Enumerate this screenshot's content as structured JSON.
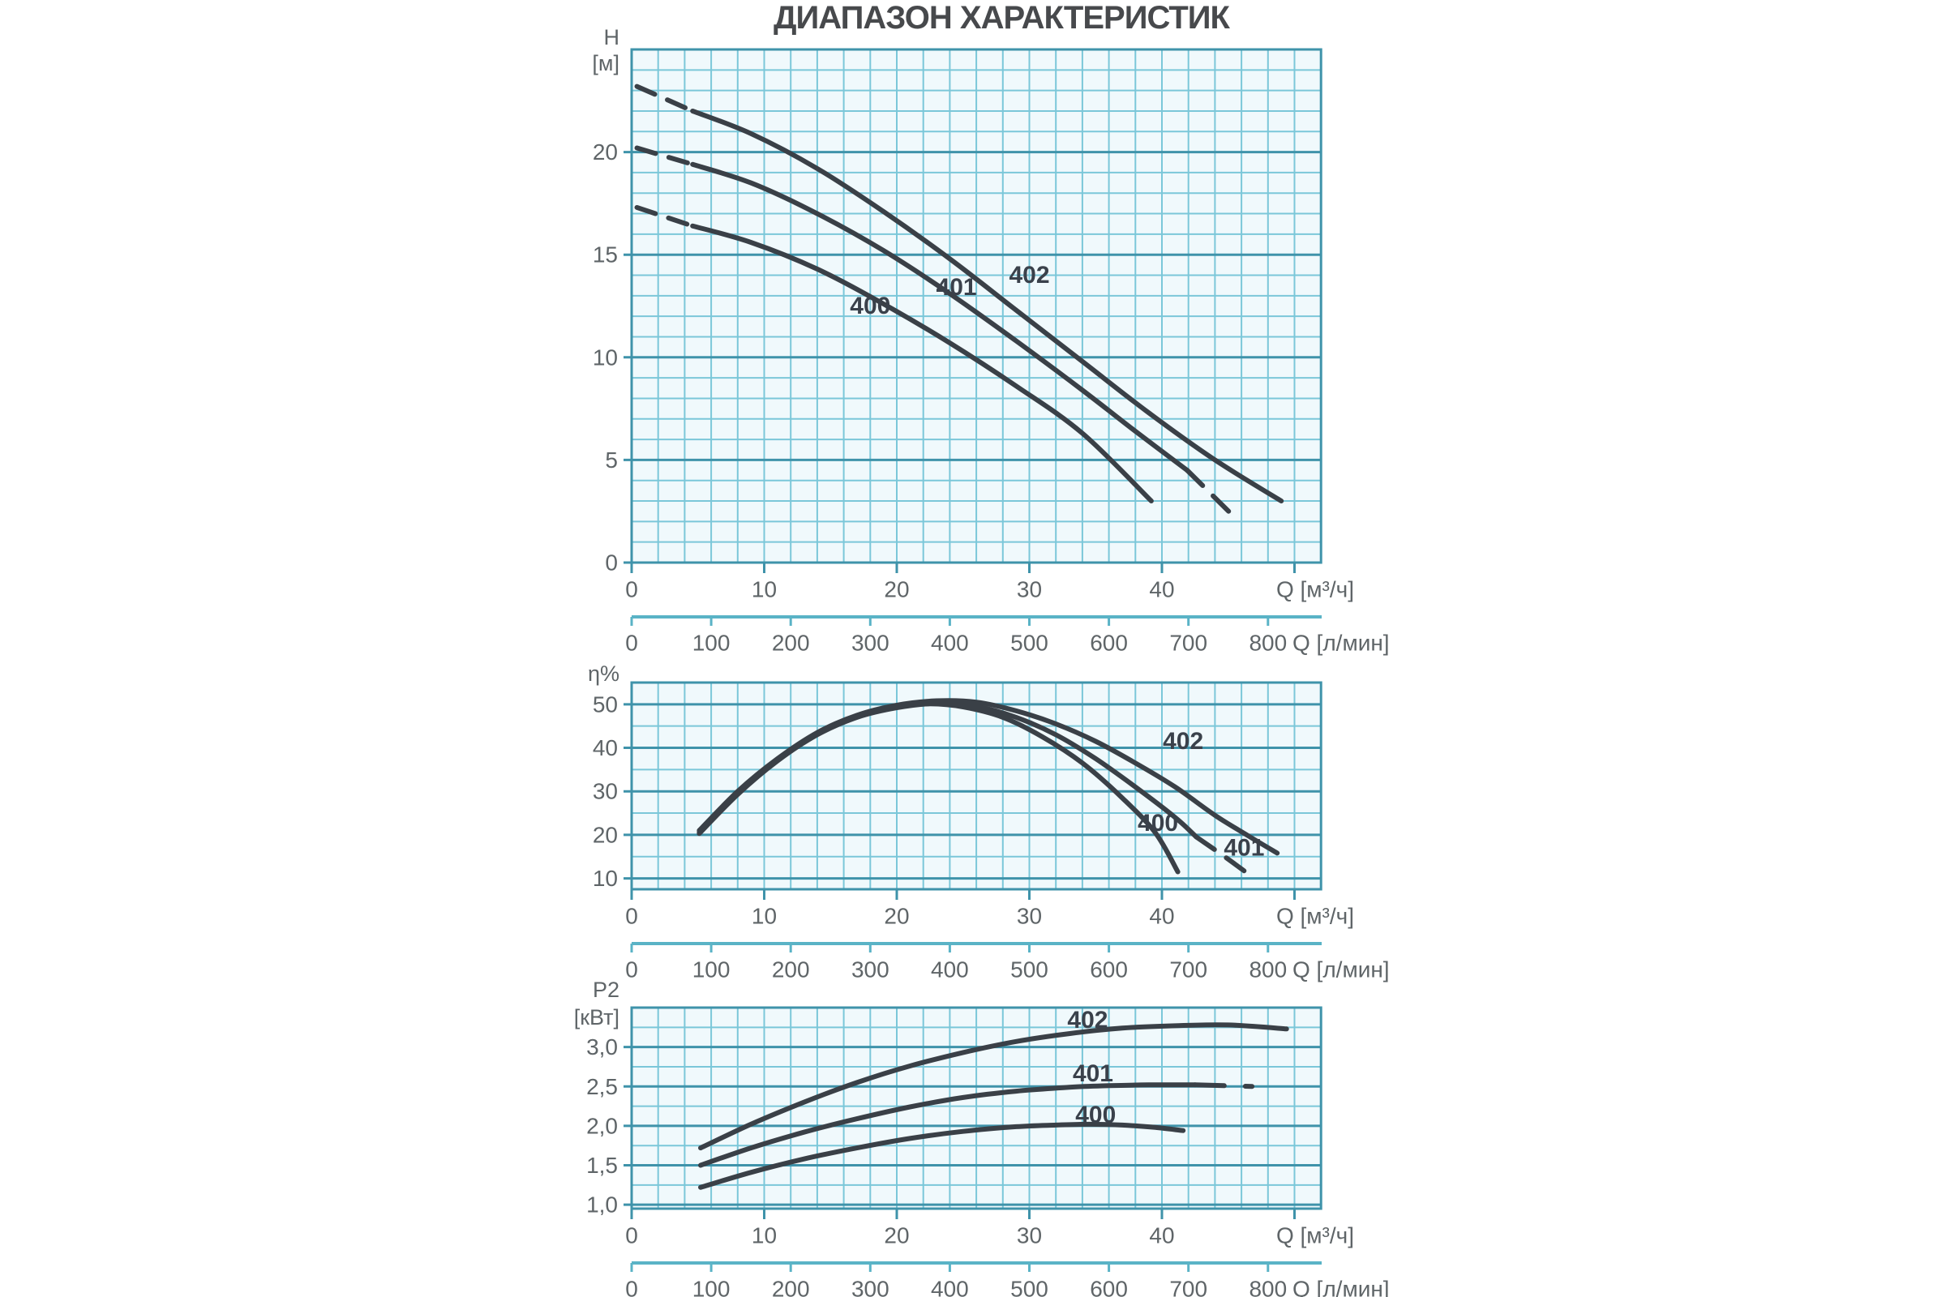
{
  "title": "ДИАПАЗОН ХАРАКТЕРИСТИК",
  "colors": {
    "grid_minor": "#7bc7d9",
    "grid_major": "#3f93aa",
    "plot_bg": "#f0f9fc",
    "curve": "#3a4047",
    "tick_text": "#5f6568",
    "curve_label_text": "#3a414b",
    "title_text": "#47494c",
    "ruler": "#5ab3c6"
  },
  "x_axis": {
    "label": "Q [м³/ч]",
    "min": 0,
    "max": 52,
    "tick_values": [
      0,
      10,
      20,
      30,
      40
    ],
    "tick_labels": [
      "0",
      "10",
      "20",
      "30",
      "40"
    ],
    "unlabeled_stub_values": [
      50
    ],
    "minor_step": 2
  },
  "flow_axis": {
    "label": "Q [л/мин]",
    "max": 800,
    "tick_values": [
      0,
      100,
      200,
      300,
      400,
      500,
      600,
      700,
      800
    ],
    "tick_labels": [
      "0",
      "100",
      "200",
      "300",
      "400",
      "500",
      "600",
      "700",
      "800"
    ]
  },
  "chart_data": [
    {
      "id": "head",
      "type": "line",
      "y_axis": {
        "name": "H",
        "unit": "[м]",
        "min": 0,
        "max": 25,
        "minor_step": 1,
        "tick_values": [
          0,
          5,
          10,
          15,
          20
        ],
        "tick_labels": [
          "0",
          "5",
          "10",
          "15",
          "20"
        ]
      },
      "series": [
        {
          "name": "400",
          "head_dash": [
            [
              0.4,
              17.3
            ],
            [
              4.6,
              16.4
            ]
          ],
          "solid": [
            [
              4.6,
              16.4
            ],
            [
              9,
              15.6
            ],
            [
              14,
              14.3
            ],
            [
              19,
              12.6
            ],
            [
              24,
              10.7
            ],
            [
              29,
              8.6
            ],
            [
              34,
              6.3
            ],
            [
              39.2,
              3.0
            ]
          ],
          "tail_dash": null,
          "label": {
            "q": 18,
            "v": 12.5
          }
        },
        {
          "name": "401",
          "head_dash": [
            [
              0.4,
              20.2
            ],
            [
              4.6,
              19.4
            ]
          ],
          "solid": [
            [
              4.6,
              19.4
            ],
            [
              9,
              18.5
            ],
            [
              14,
              17.0
            ],
            [
              19,
              15.2
            ],
            [
              24,
              13.1
            ],
            [
              29,
              10.8
            ],
            [
              34,
              8.4
            ],
            [
              38,
              6.4
            ],
            [
              41.9,
              4.5
            ]
          ],
          "tail_dash": [
            [
              41.9,
              4.5
            ],
            [
              45.5,
              2.2
            ]
          ],
          "label": {
            "q": 24.5,
            "v": 13.4
          }
        },
        {
          "name": "402",
          "head_dash": [
            [
              0.4,
              23.2
            ],
            [
              4.6,
              22.0
            ]
          ],
          "solid": [
            [
              4.6,
              22.0
            ],
            [
              9,
              20.9
            ],
            [
              14,
              19.2
            ],
            [
              19,
              17.1
            ],
            [
              24,
              14.8
            ],
            [
              29,
              12.3
            ],
            [
              34,
              9.8
            ],
            [
              39,
              7.3
            ],
            [
              44,
              5.0
            ],
            [
              49,
              3.0
            ]
          ],
          "tail_dash": null,
          "label": {
            "q": 30,
            "v": 14.0
          }
        }
      ]
    },
    {
      "id": "efficiency",
      "type": "line",
      "y_axis": {
        "name": "η%",
        "unit": "",
        "min": 7.5,
        "max": 55,
        "minor_step": 5,
        "tick_values": [
          10,
          20,
          30,
          40,
          50
        ],
        "tick_labels": [
          "10",
          "20",
          "30",
          "40",
          "50"
        ]
      },
      "series": [
        {
          "name": "400",
          "head_dash": null,
          "solid": [
            [
              5.1,
              20.6
            ],
            [
              8,
              29.6
            ],
            [
              11,
              37.2
            ],
            [
              14,
              43.2
            ],
            [
              17,
              47.2
            ],
            [
              20,
              49.4
            ],
            [
              22.5,
              50.1
            ],
            [
              25,
              49.4
            ],
            [
              28,
              47.0
            ],
            [
              31,
              42.5
            ],
            [
              34,
              36.5
            ],
            [
              37,
              28.5
            ],
            [
              39.5,
              20.5
            ],
            [
              41.2,
              11.5
            ]
          ],
          "tail_dash": null,
          "label": {
            "q": 39.7,
            "v": 22.7
          }
        },
        {
          "name": "401",
          "head_dash": null,
          "solid": [
            [
              5.1,
              20.3
            ],
            [
              8,
              29.3
            ],
            [
              11,
              37.0
            ],
            [
              14,
              43.0
            ],
            [
              17,
              47.0
            ],
            [
              20,
              49.2
            ],
            [
              23,
              50.2
            ],
            [
              26,
              49.5
            ],
            [
              29,
              47.0
            ],
            [
              32,
              43.0
            ],
            [
              35,
              37.5
            ],
            [
              38,
              31.0
            ],
            [
              41,
              24.0
            ],
            [
              42.6,
              19.5
            ]
          ],
          "tail_dash": [
            [
              42.6,
              19.5
            ],
            [
              44.5,
              15.5
            ],
            [
              46.3,
              11.5
            ]
          ],
          "label": {
            "q": 46.2,
            "v": 17.0
          }
        },
        {
          "name": "402",
          "head_dash": null,
          "solid": [
            [
              5.1,
              21.0
            ],
            [
              8,
              30.0
            ],
            [
              11,
              37.5
            ],
            [
              14,
              43.5
            ],
            [
              17,
              47.5
            ],
            [
              20,
              49.8
            ],
            [
              23,
              50.8
            ],
            [
              26,
              50.5
            ],
            [
              29,
              48.5
            ],
            [
              32,
              45.5
            ],
            [
              35,
              41.5
            ],
            [
              38,
              36.5
            ],
            [
              41,
              31.0
            ],
            [
              44,
              24.5
            ],
            [
              46.5,
              19.8
            ],
            [
              48.7,
              15.8
            ]
          ],
          "tail_dash": null,
          "label": {
            "q": 41.6,
            "v": 41.5
          }
        }
      ]
    },
    {
      "id": "power",
      "type": "line",
      "y_axis": {
        "name": "P2",
        "unit": "[кВт]",
        "min": 0.95,
        "max": 3.5,
        "minor_step": 0.25,
        "tick_values": [
          1.0,
          1.5,
          2.0,
          2.5,
          3.0
        ],
        "tick_labels": [
          "1,0",
          "1,5",
          "2,0",
          "2,5",
          "3,0"
        ]
      },
      "series": [
        {
          "name": "400",
          "head_dash": null,
          "solid": [
            [
              5.2,
              1.22
            ],
            [
              9,
              1.41
            ],
            [
              13,
              1.58
            ],
            [
              17,
              1.72
            ],
            [
              21,
              1.84
            ],
            [
              25,
              1.93
            ],
            [
              29,
              1.99
            ],
            [
              32,
              2.01
            ],
            [
              34.5,
              2.02
            ],
            [
              37,
              2.01
            ],
            [
              39.5,
              1.98
            ],
            [
              41.6,
              1.94
            ]
          ],
          "tail_dash": null,
          "label": {
            "q": 35,
            "v": 2.14
          }
        },
        {
          "name": "401",
          "head_dash": null,
          "solid": [
            [
              5.2,
              1.5
            ],
            [
              9,
              1.72
            ],
            [
              13,
              1.92
            ],
            [
              17,
              2.09
            ],
            [
              21,
              2.24
            ],
            [
              25,
              2.36
            ],
            [
              29,
              2.44
            ],
            [
              33,
              2.49
            ],
            [
              36,
              2.51
            ],
            [
              39,
              2.52
            ],
            [
              42.5,
              2.52
            ]
          ],
          "tail_dash": [
            [
              42.5,
              2.52
            ],
            [
              46.8,
              2.5
            ]
          ],
          "label": {
            "q": 34.8,
            "v": 2.66
          }
        },
        {
          "name": "402",
          "head_dash": null,
          "solid": [
            [
              5.2,
              1.72
            ],
            [
              9,
              2.02
            ],
            [
              13,
              2.3
            ],
            [
              17,
              2.55
            ],
            [
              21,
              2.76
            ],
            [
              25,
              2.93
            ],
            [
              29,
              3.07
            ],
            [
              33,
              3.17
            ],
            [
              37,
              3.24
            ],
            [
              41,
              3.27
            ],
            [
              45,
              3.28
            ],
            [
              49.4,
              3.23
            ]
          ],
          "tail_dash": null,
          "label": {
            "q": 34.4,
            "v": 3.34
          }
        }
      ]
    }
  ]
}
